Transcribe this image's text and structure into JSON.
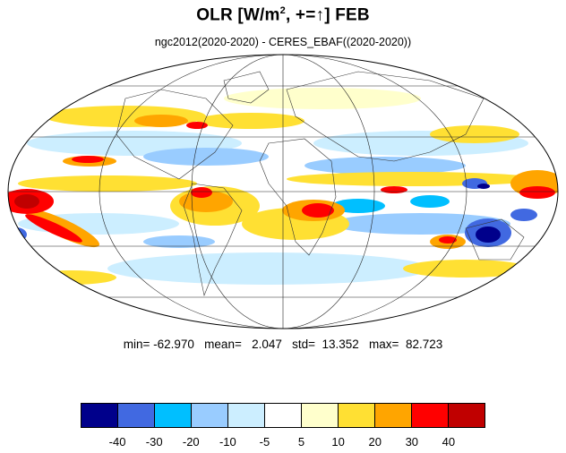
{
  "title": {
    "main": "OLR [W/m",
    "sup": "2",
    "rest": ", +=",
    "arrow": "↑",
    "month": "] FEB"
  },
  "subtitle": "ngc2012(2020-2020) - CERES_EBAF((2020-2020))",
  "stats": "min= -62.970   mean=   2.047   std=  13.352   max=  82.723",
  "colorbar": {
    "colors": [
      "#00008b",
      "#4169e1",
      "#00bfff",
      "#99ccff",
      "#cceeff",
      "#ffffff",
      "#ffffcc",
      "#ffe033",
      "#ffa500",
      "#ff0000",
      "#c00000"
    ],
    "tick_labels": [
      "-40",
      "-30",
      "-20",
      "-10",
      "-5",
      "5",
      "10",
      "20",
      "30",
      "40"
    ]
  },
  "map": {
    "projection": "Mollweide",
    "variable": "OLR",
    "units": "W/m2"
  }
}
